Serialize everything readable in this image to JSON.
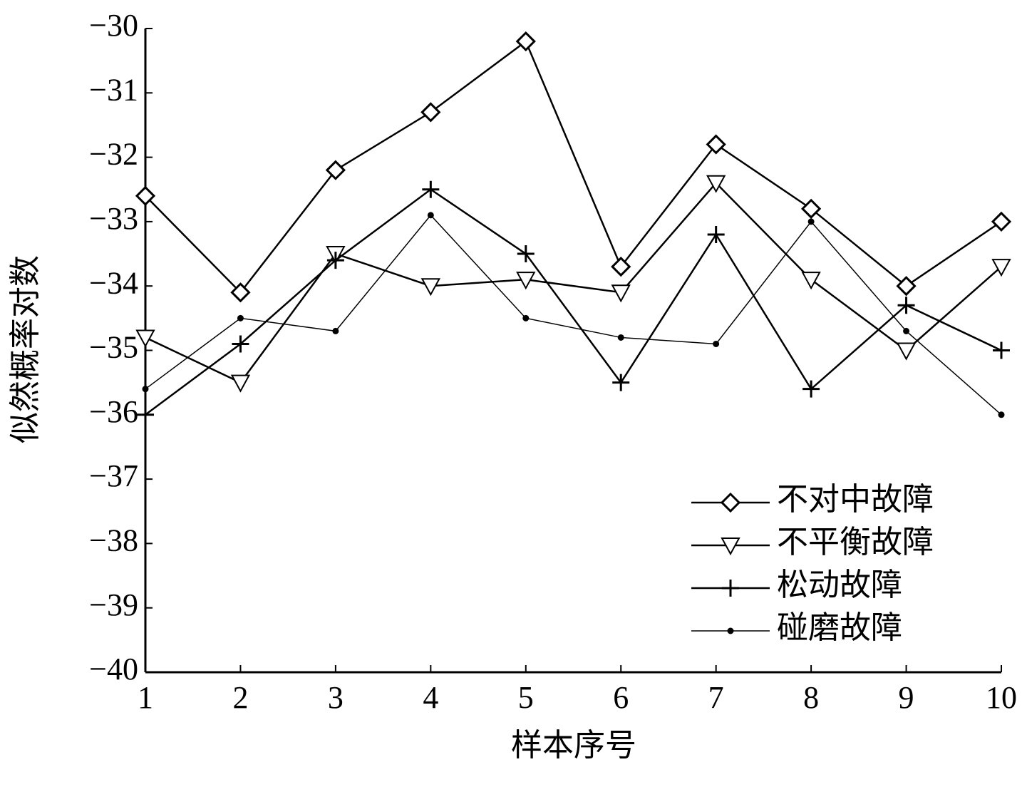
{
  "chart_data": {
    "type": "line",
    "x_label": "样本序号",
    "y_label": "似然概率对数",
    "x": [
      1,
      2,
      3,
      4,
      5,
      6,
      7,
      8,
      9,
      10
    ],
    "xlim": [
      1,
      10
    ],
    "xticks": [
      1,
      2,
      3,
      4,
      5,
      6,
      7,
      8,
      9,
      10
    ],
    "ylim": [
      -40,
      -30
    ],
    "yticks": [
      {
        "value": -40,
        "label": "−40"
      },
      {
        "value": -39,
        "label": "−39"
      },
      {
        "value": -38,
        "label": "−38"
      },
      {
        "value": -37,
        "label": "−37"
      },
      {
        "value": -36,
        "label": "−36"
      },
      {
        "value": -35,
        "label": "−35"
      },
      {
        "value": -34,
        "label": "−34"
      },
      {
        "value": -33,
        "label": "−33"
      },
      {
        "value": -32,
        "label": "−32"
      },
      {
        "value": -31,
        "label": "−31"
      },
      {
        "value": -30,
        "label": "−30"
      }
    ],
    "grid": false,
    "legend": "lower right",
    "series": [
      {
        "name": "不对中故障",
        "color": "#000000",
        "marker": "diamond",
        "values": [
          -32.6,
          -34.1,
          -32.2,
          -31.3,
          -30.2,
          -33.7,
          -31.8,
          -32.8,
          -34.0,
          -33.0
        ]
      },
      {
        "name": "不平衡故障",
        "color": "#000000",
        "marker": "triangle-down",
        "values": [
          -34.8,
          -35.5,
          -33.5,
          -34.0,
          -33.9,
          -34.1,
          -32.4,
          -33.9,
          -35.0,
          -33.7
        ]
      },
      {
        "name": "松动故障",
        "color": "#000000",
        "marker": "plus",
        "values": [
          -36.0,
          -34.9,
          -33.6,
          -32.5,
          -33.5,
          -35.5,
          -33.2,
          -35.6,
          -34.3,
          -35.0
        ]
      },
      {
        "name": "碰磨故障",
        "color": "#000000",
        "marker": "dot",
        "values": [
          -35.6,
          -34.5,
          -34.7,
          -32.9,
          -34.5,
          -34.8,
          -34.9,
          -33.0,
          -34.7,
          -36.0
        ]
      }
    ]
  }
}
